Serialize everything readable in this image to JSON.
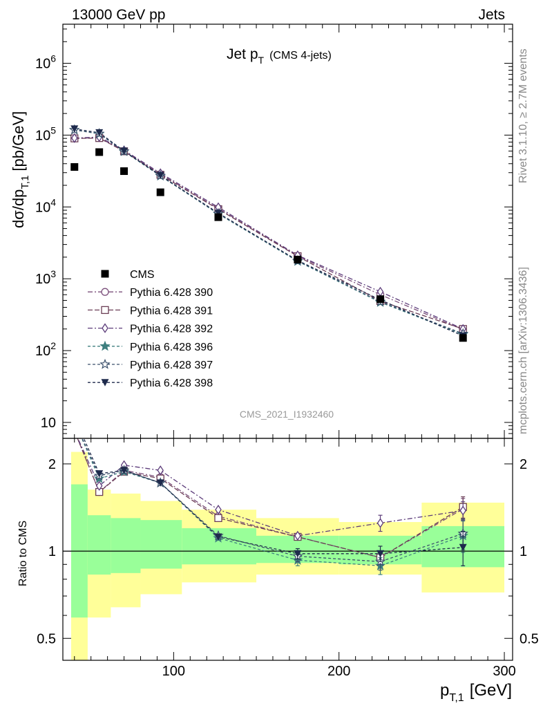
{
  "header": {
    "left": "13000 GeV pp",
    "right": "Jets"
  },
  "side_text": {
    "rivet": "Rivet 3.1.10, ≥ 2.7M events",
    "mcplots": "mcplots.cern.ch [arXiv:1306.3436]"
  },
  "chart_data": [
    {
      "type": "scatter",
      "title": "Jet p_T (CMS 4-jets)",
      "title_main": "Jet p",
      "title_sub": "T",
      "title_note": "(CMS 4-jets)",
      "ylabel": "dσ/dp_T,1 [pb/GeV]",
      "ylabel_main": "dσ/dp",
      "ylabel_sub": "T,1",
      "ylabel_unit": "[pb/GeV]",
      "y_scale": "log",
      "ylim": [
        6,
        3500000
      ],
      "xlim": [
        33,
        305
      ],
      "y_ticks": [
        {
          "value": 10,
          "base": "10",
          "exp": ""
        },
        {
          "value": 100,
          "base": "10",
          "exp": "2"
        },
        {
          "value": 1000,
          "base": "10",
          "exp": "3"
        },
        {
          "value": 10000,
          "base": "10",
          "exp": "4"
        },
        {
          "value": 100000,
          "base": "10",
          "exp": "5"
        },
        {
          "value": 1000000,
          "base": "10",
          "exp": "6"
        }
      ],
      "watermark": "CMS_2021_I1932460",
      "legend_position": "left",
      "x": [
        40,
        55,
        70,
        92,
        127,
        175,
        225,
        275
      ],
      "series": [
        {
          "name": "CMS",
          "color": "#000000",
          "marker": "square",
          "values": [
            36000,
            58000,
            31500,
            16000,
            7200,
            1850,
            520,
            150
          ]
        },
        {
          "name": "Pythia 6.428 390",
          "color": "#7b4f7b",
          "marker": "circle",
          "dash": "7,3,2,3",
          "values": [
            90000,
            92000,
            60000,
            28500,
            9500,
            2080,
            600,
            195
          ]
        },
        {
          "name": "Pythia 6.428 391",
          "color": "#6b3d55",
          "marker": "square-open",
          "dash": "7,3",
          "values": [
            90000,
            91000,
            59500,
            28000,
            9300,
            2060,
            490,
            200
          ]
        },
        {
          "name": "Pythia 6.428 392",
          "color": "#5c3c7a",
          "marker": "diamond",
          "dash": "7,3,2,3",
          "values": [
            91000,
            94000,
            61500,
            29500,
            9900,
            2120,
            660,
            200
          ]
        },
        {
          "name": "Pythia 6.428 396",
          "color": "#3e7f7f",
          "marker": "star",
          "dash": "4,3",
          "values": [
            118000,
            104000,
            59000,
            27000,
            8000,
            1750,
            470,
            168
          ]
        },
        {
          "name": "Pythia 6.428 397",
          "color": "#3a4f6b",
          "marker": "star-open",
          "dash": "4,3",
          "values": [
            118000,
            105000,
            59500,
            27200,
            8100,
            1780,
            480,
            172
          ]
        },
        {
          "name": "Pythia 6.428 398",
          "color": "#1e2a4c",
          "marker": "triangle-down",
          "dash": "4,3",
          "values": [
            122000,
            108000,
            60000,
            27500,
            8200,
            1800,
            510,
            160
          ]
        }
      ]
    },
    {
      "type": "line",
      "ylabel": "Ratio to CMS",
      "y_scale": "log",
      "ylim": [
        0.42,
        2.45
      ],
      "xlim": [
        33,
        305
      ],
      "y_ticks": [
        {
          "value": 0.5,
          "label": "0.5"
        },
        {
          "value": 1,
          "label": "1"
        },
        {
          "value": 2,
          "label": "2"
        }
      ],
      "x_ticks": [
        {
          "value": 100,
          "label": "100"
        },
        {
          "value": 200,
          "label": "200"
        },
        {
          "value": 300,
          "label": "300"
        }
      ],
      "xlabel": "p_T,1 [GeV]",
      "xlabel_main": "p",
      "xlabel_sub": "T,1",
      "xlabel_unit": "[GeV]",
      "bands": [
        {
          "x0": 38,
          "x1": 48,
          "green": [
            0.59,
            1.7
          ],
          "yellow": [
            0.36,
            2.2
          ]
        },
        {
          "x0": 48,
          "x1": 62,
          "green": [
            0.83,
            1.33
          ],
          "yellow": [
            0.59,
            1.63
          ]
        },
        {
          "x0": 62,
          "x1": 80,
          "green": [
            0.84,
            1.3
          ],
          "yellow": [
            0.64,
            1.58
          ]
        },
        {
          "x0": 80,
          "x1": 105,
          "green": [
            0.87,
            1.28
          ],
          "yellow": [
            0.71,
            1.49
          ]
        },
        {
          "x0": 105,
          "x1": 150,
          "green": [
            0.9,
            1.2
          ],
          "yellow": [
            0.78,
            1.39
          ]
        },
        {
          "x0": 150,
          "x1": 200,
          "green": [
            0.91,
            1.13
          ],
          "yellow": [
            0.83,
            1.3
          ]
        },
        {
          "x0": 200,
          "x1": 250,
          "green": [
            0.9,
            1.13
          ],
          "yellow": [
            0.83,
            1.26
          ]
        },
        {
          "x0": 250,
          "x1": 300,
          "green": [
            0.88,
            1.22
          ],
          "yellow": [
            0.72,
            1.47
          ]
        }
      ],
      "series": [
        {
          "name": "Pythia 6.428 390",
          "values": [
            2.6,
            1.6,
            1.9,
            1.8,
            1.32,
            1.12,
            0.95,
            1.4
          ],
          "err": [
            0,
            0,
            0,
            0,
            0,
            0,
            0,
            0.12
          ]
        },
        {
          "name": "Pythia 6.428 391",
          "values": [
            2.6,
            1.6,
            1.88,
            1.78,
            1.3,
            1.12,
            0.95,
            1.42
          ],
          "err": [
            0,
            0,
            0,
            0,
            0,
            0,
            0.05,
            0.12
          ]
        },
        {
          "name": "Pythia 6.428 392",
          "values": [
            2.6,
            1.68,
            1.98,
            1.9,
            1.39,
            1.13,
            1.25,
            1.38
          ],
          "err": [
            0,
            0,
            0,
            0,
            0,
            0,
            0.08,
            0.1
          ]
        },
        {
          "name": "Pythia 6.428 396",
          "values": [
            2.8,
            1.78,
            1.88,
            1.72,
            1.11,
            0.93,
            0.89,
            1.13
          ],
          "err": [
            0,
            0,
            0,
            0,
            0,
            0.04,
            0.06,
            0.14
          ]
        },
        {
          "name": "Pythia 6.428 397",
          "values": [
            2.8,
            1.82,
            1.9,
            1.72,
            1.13,
            0.96,
            0.92,
            1.15
          ],
          "err": [
            0,
            0,
            0,
            0,
            0,
            0.04,
            0.06,
            0.14
          ]
        },
        {
          "name": "Pythia 6.428 398",
          "values": [
            2.9,
            1.85,
            1.9,
            1.72,
            1.12,
            0.98,
            0.98,
            1.03
          ],
          "err": [
            0,
            0,
            0,
            0,
            0,
            0.04,
            0.06,
            0.14
          ]
        }
      ]
    }
  ]
}
